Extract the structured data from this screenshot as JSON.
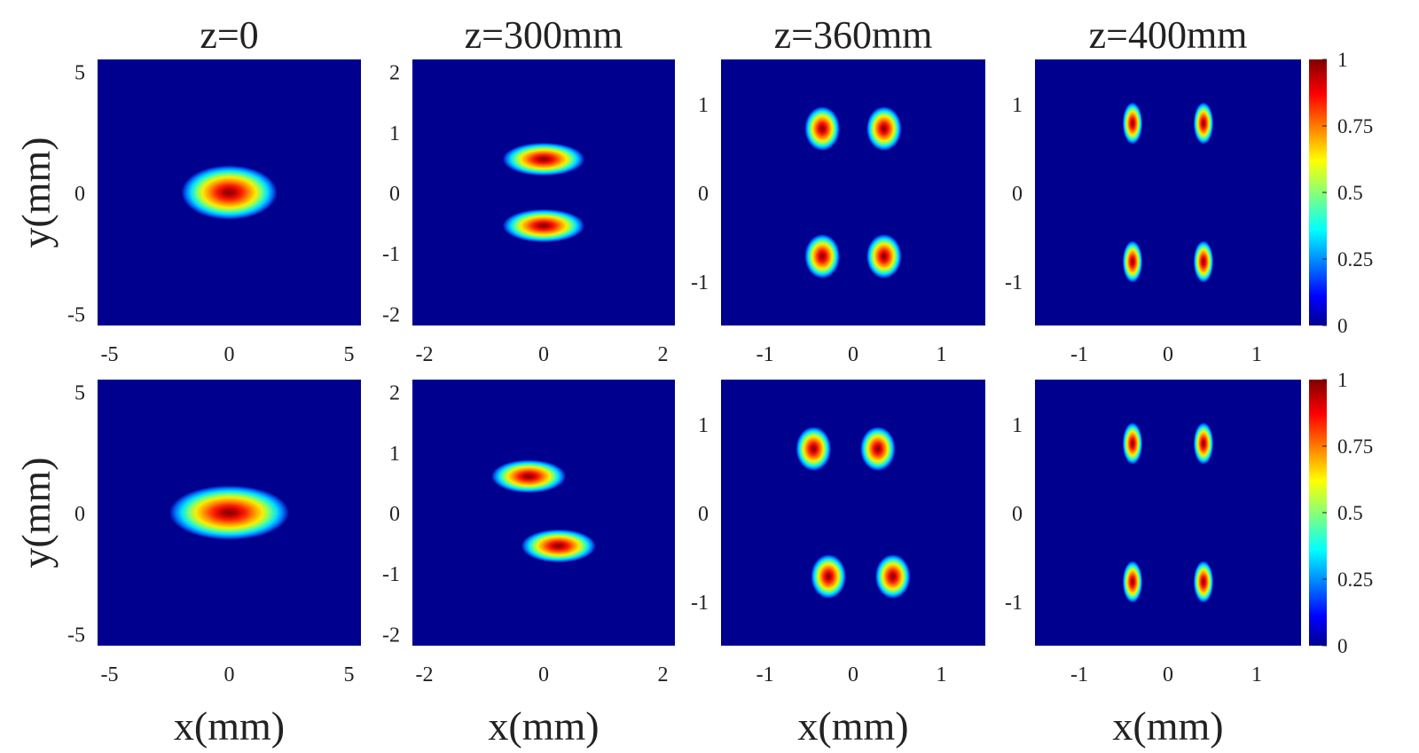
{
  "chart_data": {
    "type": "heatmap",
    "column_titles": [
      "z=0",
      "z=300mm",
      "z=360mm",
      "z=400mm"
    ],
    "xlabel": "x(mm)",
    "ylabel": "y(mm)",
    "colormap": "jet",
    "colorbar": {
      "range": [
        0,
        1
      ],
      "ticks": [
        "0",
        "0.25",
        "0.5",
        "0.75",
        "1"
      ]
    },
    "panels": [
      {
        "row": 0,
        "col": 0,
        "xlim": [
          -5.5,
          5.5
        ],
        "ylim": [
          -5.5,
          5.5
        ],
        "xticks": [
          -5,
          0,
          5
        ],
        "yticks": [
          -5,
          0,
          5
        ],
        "spots": [
          {
            "x": 0,
            "y": 0,
            "sx": 1.6,
            "sy": 0.9
          }
        ]
      },
      {
        "row": 0,
        "col": 1,
        "xlim": [
          -2.2,
          2.2
        ],
        "ylim": [
          -2.2,
          2.2
        ],
        "xticks": [
          -2,
          0,
          2
        ],
        "yticks": [
          -2,
          -1,
          0,
          1,
          2
        ],
        "spots": [
          {
            "x": 0,
            "y": 0.55,
            "sx": 0.55,
            "sy": 0.22
          },
          {
            "x": 0,
            "y": -0.55,
            "sx": 0.55,
            "sy": 0.22
          }
        ]
      },
      {
        "row": 0,
        "col": 2,
        "xlim": [
          -1.5,
          1.5
        ],
        "ylim": [
          -1.5,
          1.5
        ],
        "xticks": [
          -1,
          0,
          1
        ],
        "yticks": [
          -1,
          0,
          1
        ],
        "spots": [
          {
            "x": -0.35,
            "y": 0.72,
            "sx": 0.16,
            "sy": 0.2
          },
          {
            "x": 0.35,
            "y": 0.72,
            "sx": 0.16,
            "sy": 0.2
          },
          {
            "x": -0.35,
            "y": -0.72,
            "sx": 0.16,
            "sy": 0.2
          },
          {
            "x": 0.35,
            "y": -0.72,
            "sx": 0.16,
            "sy": 0.2
          }
        ]
      },
      {
        "row": 0,
        "col": 3,
        "xlim": [
          -1.5,
          1.5
        ],
        "ylim": [
          -1.5,
          1.5
        ],
        "xticks": [
          -1,
          0,
          1
        ],
        "yticks": [
          -1,
          0,
          1
        ],
        "spots": [
          {
            "x": -0.4,
            "y": 0.78,
            "sx": 0.09,
            "sy": 0.19
          },
          {
            "x": 0.4,
            "y": 0.78,
            "sx": 0.09,
            "sy": 0.19
          },
          {
            "x": -0.4,
            "y": -0.78,
            "sx": 0.09,
            "sy": 0.19
          },
          {
            "x": 0.4,
            "y": -0.78,
            "sx": 0.09,
            "sy": 0.19
          }
        ]
      },
      {
        "row": 1,
        "col": 0,
        "xlim": [
          -5.5,
          5.5
        ],
        "ylim": [
          -5.5,
          5.5
        ],
        "xticks": [
          -5,
          0,
          5
        ],
        "yticks": [
          -5,
          0,
          5
        ],
        "spots": [
          {
            "x": 0,
            "y": 0,
            "sx": 2.0,
            "sy": 0.9
          }
        ]
      },
      {
        "row": 1,
        "col": 1,
        "xlim": [
          -2.2,
          2.2
        ],
        "ylim": [
          -2.2,
          2.2
        ],
        "xticks": [
          -2,
          0,
          2
        ],
        "yticks": [
          -2,
          -1,
          0,
          1,
          2
        ],
        "spots": [
          {
            "x": -0.25,
            "y": 0.6,
            "sx": 0.5,
            "sy": 0.22
          },
          {
            "x": 0.25,
            "y": -0.55,
            "sx": 0.5,
            "sy": 0.22
          }
        ]
      },
      {
        "row": 1,
        "col": 2,
        "xlim": [
          -1.5,
          1.5
        ],
        "ylim": [
          -1.5,
          1.5
        ],
        "xticks": [
          -1,
          0,
          1
        ],
        "yticks": [
          -1,
          0,
          1
        ],
        "spots": [
          {
            "x": -0.45,
            "y": 0.72,
            "sx": 0.16,
            "sy": 0.2
          },
          {
            "x": 0.28,
            "y": 0.72,
            "sx": 0.16,
            "sy": 0.2
          },
          {
            "x": -0.28,
            "y": -0.72,
            "sx": 0.16,
            "sy": 0.2
          },
          {
            "x": 0.45,
            "y": -0.72,
            "sx": 0.16,
            "sy": 0.2
          }
        ]
      },
      {
        "row": 1,
        "col": 3,
        "xlim": [
          -1.5,
          1.5
        ],
        "ylim": [
          -1.5,
          1.5
        ],
        "xticks": [
          -1,
          0,
          1
        ],
        "yticks": [
          -1,
          0,
          1
        ],
        "spots": [
          {
            "x": -0.4,
            "y": 0.78,
            "sx": 0.09,
            "sy": 0.19
          },
          {
            "x": 0.4,
            "y": 0.78,
            "sx": 0.09,
            "sy": 0.19
          },
          {
            "x": -0.4,
            "y": -0.78,
            "sx": 0.09,
            "sy": 0.19
          },
          {
            "x": 0.4,
            "y": -0.78,
            "sx": 0.09,
            "sy": 0.19
          }
        ]
      }
    ]
  }
}
